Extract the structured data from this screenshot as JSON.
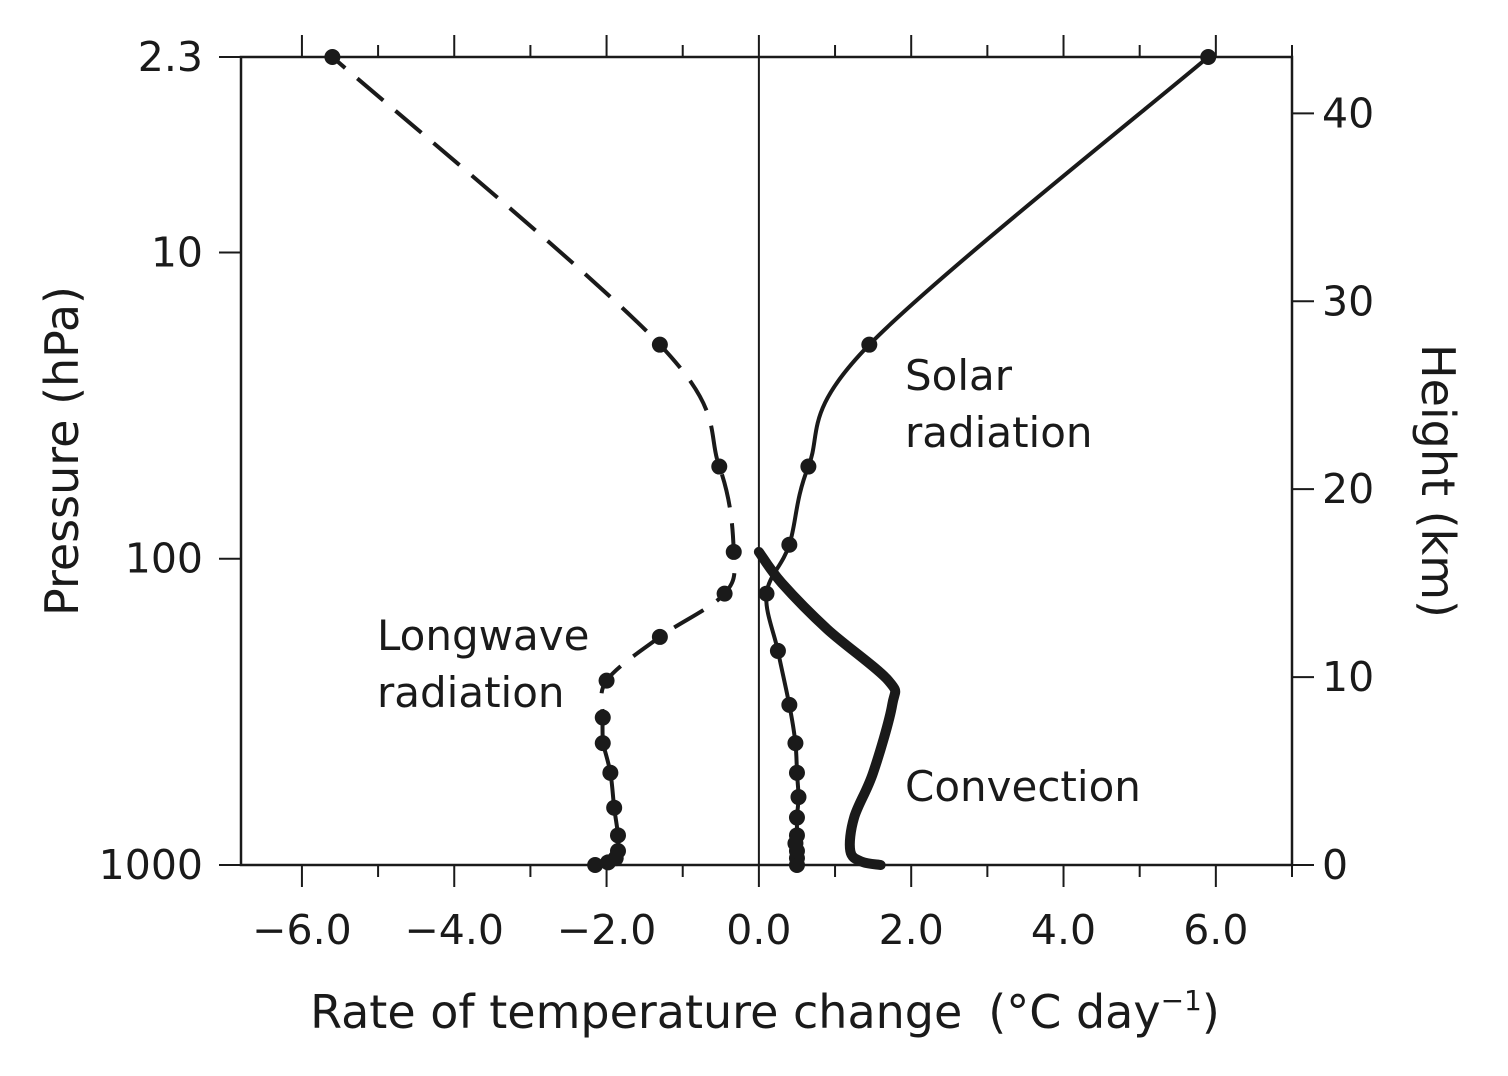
{
  "chart_data": {
    "type": "line",
    "xlabel": "Rate of temperature change",
    "xlabel_unit_prefix": "(°C day",
    "xlabel_unit_exponent": "−1",
    "xlabel_unit_suffix": ")",
    "ylabel_left": "Pressure  (hPa)",
    "ylabel_right": "Height  (km)",
    "xlim": [
      -6.8,
      7.0
    ],
    "x_ticks": [
      -6.0,
      -4.0,
      -2.0,
      0.0,
      2.0,
      4.0,
      6.0
    ],
    "x_tick_labels": [
      "−6.0",
      "−4.0",
      "−2.0",
      "0.0",
      "2.0",
      "4.0",
      "6.0"
    ],
    "y_scale": "log-pressure",
    "ylim_pressure_hPa": [
      1000,
      2.3
    ],
    "pressure_ticks": [
      2.3,
      10,
      100,
      1000
    ],
    "pressure_tick_labels": [
      "2.3",
      "10",
      "100",
      "1000"
    ],
    "height_ticks_km": [
      0,
      10,
      20,
      30,
      40
    ],
    "height_tick_labels": [
      "0",
      "10",
      "20",
      "30",
      "40"
    ],
    "zero_line": true,
    "grid": false,
    "annotations": {
      "solar_line1": "Solar",
      "solar_line2": "radiation",
      "longwave_line1": "Longwave",
      "longwave_line2": "radiation",
      "convection": "Convection"
    },
    "series": [
      {
        "key": "solar",
        "style": "solid",
        "markers": true,
        "points": [
          {
            "x": 0.5,
            "p": 1000
          },
          {
            "x": 0.5,
            "p": 950
          },
          {
            "x": 0.5,
            "p": 900
          },
          {
            "x": 0.48,
            "p": 850
          },
          {
            "x": 0.5,
            "p": 800
          },
          {
            "x": 0.5,
            "p": 700
          },
          {
            "x": 0.52,
            "p": 600
          },
          {
            "x": 0.5,
            "p": 500
          },
          {
            "x": 0.48,
            "p": 400
          },
          {
            "x": 0.4,
            "p": 300
          },
          {
            "x": 0.25,
            "p": 200
          },
          {
            "x": 0.1,
            "p": 130
          },
          {
            "x": 0.4,
            "p": 90
          },
          {
            "x": 0.65,
            "p": 50
          },
          {
            "x": 1.45,
            "p": 20
          },
          {
            "x": 5.9,
            "p": 2.3
          }
        ]
      },
      {
        "key": "longwave",
        "style": "dashed-above-dotted-below",
        "markers": true,
        "points": [
          {
            "x": -2.15,
            "p": 1000
          },
          {
            "x": -1.98,
            "p": 980
          },
          {
            "x": -1.88,
            "p": 950
          },
          {
            "x": -1.85,
            "p": 900
          },
          {
            "x": -1.85,
            "p": 800
          },
          {
            "x": -1.9,
            "p": 650
          },
          {
            "x": -1.95,
            "p": 500
          },
          {
            "x": -2.05,
            "p": 400
          },
          {
            "x": -2.05,
            "p": 330
          },
          {
            "x": -2.0,
            "p": 250
          },
          {
            "x": -1.3,
            "p": 180
          },
          {
            "x": -0.45,
            "p": 130
          },
          {
            "x": -0.33,
            "p": 95
          },
          {
            "x": -0.52,
            "p": 50
          },
          {
            "x": -1.3,
            "p": 20
          },
          {
            "x": -5.6,
            "p": 2.3
          }
        ]
      },
      {
        "key": "convection",
        "style": "thick-solid",
        "markers": false,
        "points": [
          {
            "x": 1.6,
            "p": 1000
          },
          {
            "x": 1.35,
            "p": 975
          },
          {
            "x": 1.2,
            "p": 900
          },
          {
            "x": 1.25,
            "p": 700
          },
          {
            "x": 1.5,
            "p": 500
          },
          {
            "x": 1.75,
            "p": 300
          },
          {
            "x": 1.7,
            "p": 250
          },
          {
            "x": 0.9,
            "p": 170
          },
          {
            "x": 0.3,
            "p": 120
          },
          {
            "x": 0.0,
            "p": 95
          }
        ]
      }
    ]
  }
}
